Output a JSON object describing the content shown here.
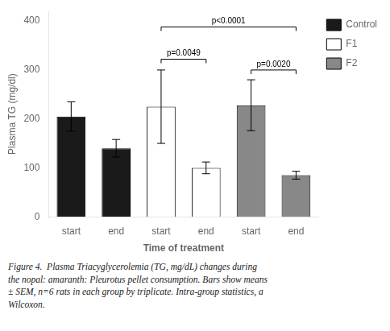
{
  "chart_data": {
    "type": "bar",
    "xlabel": "Time of treatment",
    "ylabel": "Plasma TG (mg/dl)",
    "categories": [
      "start",
      "end",
      "start",
      "end",
      "start",
      "end"
    ],
    "series": [
      {
        "name": "Control",
        "color": "#1a1a1a",
        "values": [
          205,
          140,
          null,
          null,
          null,
          null
        ],
        "errors": [
          30,
          18,
          null,
          null,
          null,
          null
        ]
      },
      {
        "name": "F1",
        "color": "#ffffff",
        "values": [
          null,
          null,
          225,
          100,
          null,
          null
        ],
        "errors": [
          null,
          null,
          75,
          12,
          null,
          null
        ]
      },
      {
        "name": "F2",
        "color": "#888888",
        "values": [
          null,
          null,
          null,
          null,
          228,
          85
        ],
        "errors": [
          null,
          null,
          null,
          null,
          52,
          8
        ]
      }
    ],
    "ylim": [
      0,
      420
    ],
    "yticks": [
      0,
      100,
      200,
      300,
      400
    ],
    "grid": false,
    "legend": "upper right",
    "annotations": [
      {
        "text": "p<0.0001",
        "x": [
          2,
          5
        ],
        "y": 388
      },
      {
        "text": "p=0.0049",
        "x": [
          2,
          3
        ],
        "y": 322
      },
      {
        "text": "p=0.0020",
        "x": [
          4,
          5
        ],
        "y": 300
      }
    ],
    "caption": "Figure 4.  Plasma Triacyglycerolemia (TG, mg/dL) changes during\nthe nopal: amaranth: Pleurotus pellet consumption. Bars show means\n± SEM, n=6 rats in each group by triplicate. Intra-group statistics, a\nWilcoxon."
  }
}
